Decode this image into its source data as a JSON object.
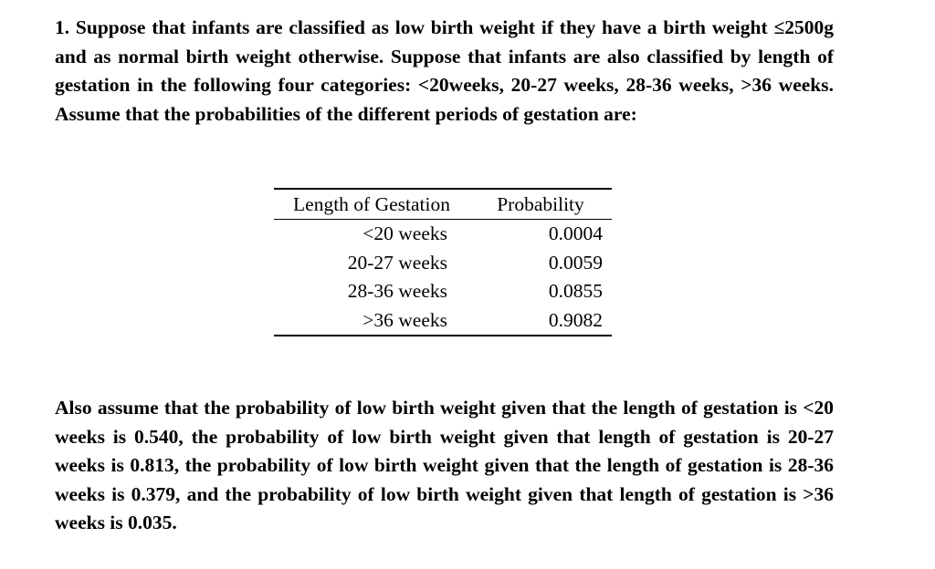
{
  "intro_paragraph": "1. Suppose that infants are classified as low birth weight if they have a birth weight ≤2500g and as normal birth weight otherwise. Suppose that infants are also classified by length of gestation in the following four categories: <20weeks, 20-27 weeks, 28-36 weeks, >36 weeks.  Assume that the probabilities of the different periods of gestation are:",
  "table": {
    "headers": [
      "Length of Gestation",
      "Probability"
    ],
    "rows": [
      {
        "gestation": "<20 weeks",
        "probability": "0.0004"
      },
      {
        "gestation": "20-27 weeks",
        "probability": "0.0059"
      },
      {
        "gestation": "28-36 weeks",
        "probability": "0.0855"
      },
      {
        "gestation": ">36 weeks",
        "probability": "0.9082"
      }
    ]
  },
  "closing_paragraph": "Also assume that the probability of low birth weight given that the length of gestation is <20 weeks is 0.540, the probability of low birth weight given that length of gestation is 20-27 weeks is 0.813, the probability of low birth weight given that the length of gestation is 28-36 weeks is 0.379, and the probability of low birth weight given that length of gestation is >36 weeks is 0.035."
}
